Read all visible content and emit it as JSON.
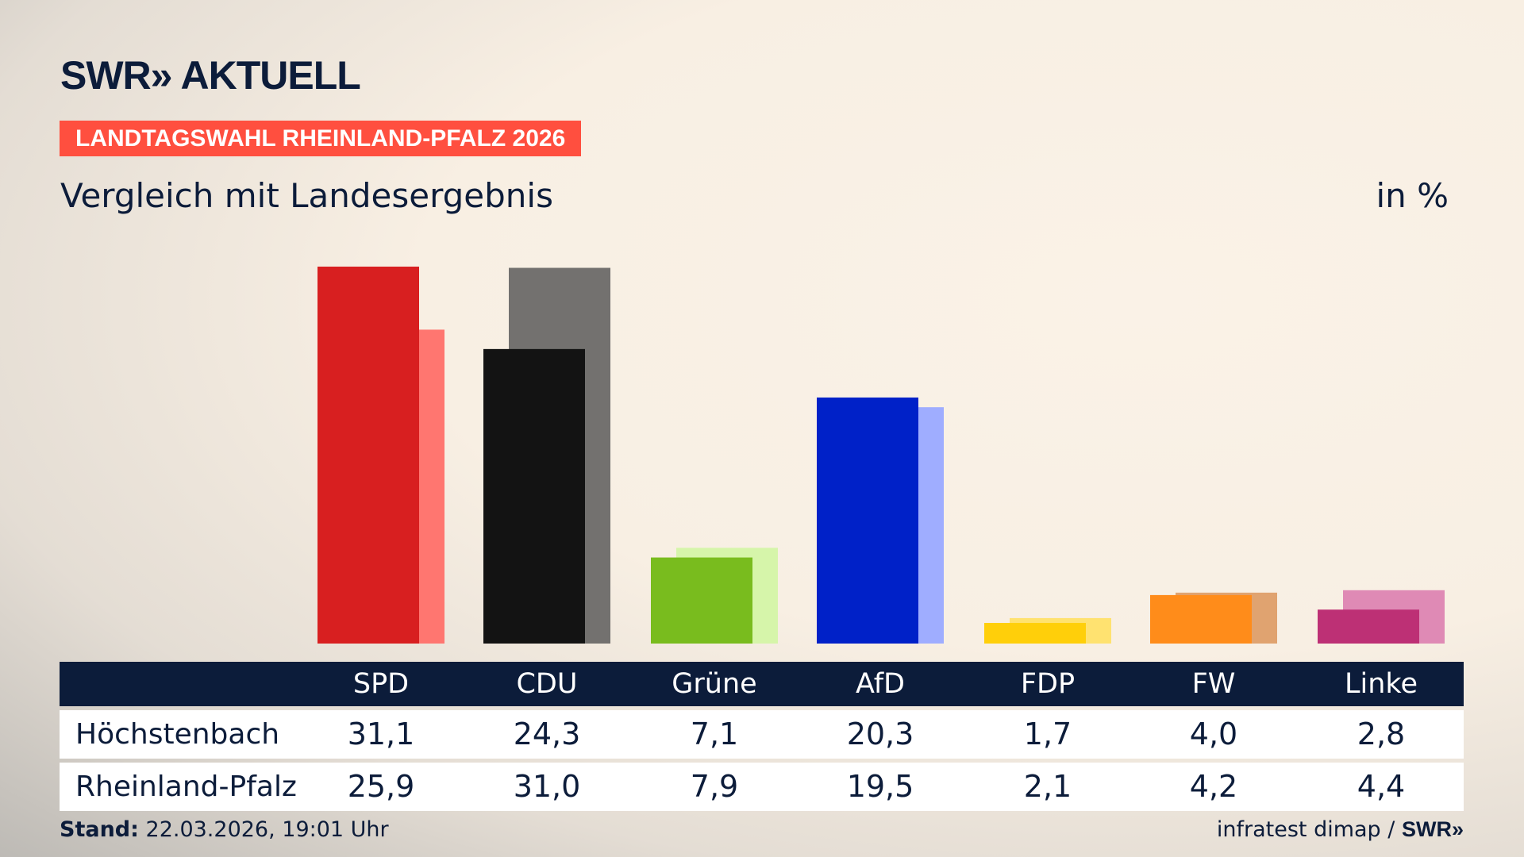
{
  "logo": "SWR» AKTUELL",
  "banner": "LANDTAGSWAHL RHEINLAND-PFALZ 2026",
  "subtitle": "Vergleich mit Landesergebnis",
  "unit": "in %",
  "chart_data": {
    "type": "bar",
    "categories": [
      "SPD",
      "CDU",
      "Grüne",
      "AfD",
      "FDP",
      "FW",
      "Linke"
    ],
    "series": [
      {
        "name": "Höchstenbach",
        "values": [
          31.1,
          24.3,
          7.1,
          20.3,
          1.7,
          4.0,
          2.8
        ],
        "labels": [
          "31,1",
          "24,3",
          "7,1",
          "20,3",
          "1,7",
          "4,0",
          "2,8"
        ],
        "colors": [
          "#d81f20",
          "#131313",
          "#79bc1e",
          "#0021c8",
          "#ffcf0a",
          "#ff8c1a",
          "#bd3075"
        ]
      },
      {
        "name": "Rheinland-Pfalz",
        "values": [
          25.9,
          31.0,
          7.9,
          19.5,
          2.1,
          4.2,
          4.4
        ],
        "labels": [
          "25,9",
          "31,0",
          "7,9",
          "19,5",
          "2,1",
          "4,2",
          "4,4"
        ],
        "colors": [
          "#ff7670",
          "#73716f",
          "#d6f5aa",
          "#9fadff",
          "#ffe270",
          "#e0a370",
          "#df8ab5"
        ]
      }
    ],
    "ylim": [
      0,
      31.1
    ]
  },
  "footer": {
    "stand_label": "Stand:",
    "stand_value": "22.03.2026, 19:01 Uhr",
    "source": "infratest dimap /",
    "source_logo": "SWR»"
  }
}
